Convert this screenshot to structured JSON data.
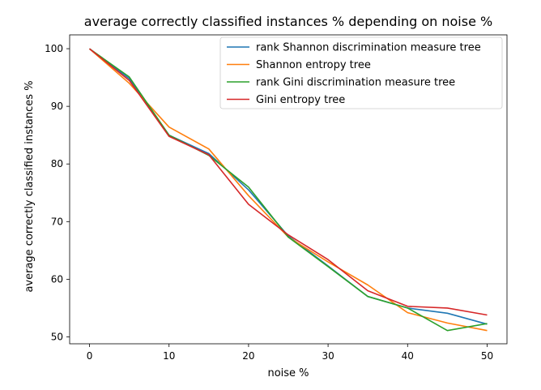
{
  "chart_data": {
    "type": "line",
    "title": "average correctly classified instances % depending on noise %",
    "xlabel": "noise %",
    "ylabel": "average correctly classified instances %",
    "xlim": [
      -2.5,
      52.5
    ],
    "ylim": [
      48.8,
      102.4
    ],
    "xticks": [
      0,
      10,
      20,
      30,
      40,
      50
    ],
    "yticks": [
      50,
      60,
      70,
      80,
      90,
      100
    ],
    "legend_position": "top-right",
    "x": [
      0,
      5,
      10,
      15,
      20,
      25,
      30,
      35,
      40,
      45,
      50
    ],
    "series": [
      {
        "name": "rank Shannon discrimination measure tree",
        "color": "#1f77b4",
        "values": [
          100,
          94.8,
          85.0,
          81.8,
          75.5,
          67.5,
          62.3,
          57.0,
          55.0,
          54.1,
          52.2
        ]
      },
      {
        "name": "Shannon entropy tree",
        "color": "#ff7f0e",
        "values": [
          100,
          94.0,
          86.4,
          82.6,
          74.5,
          67.3,
          63.0,
          59.0,
          54.2,
          52.4,
          51.1
        ]
      },
      {
        "name": "rank Gini discrimination measure tree",
        "color": "#2ca02c",
        "values": [
          100,
          95.1,
          85.0,
          81.5,
          76.0,
          67.3,
          62.2,
          57.0,
          55.0,
          51.1,
          52.3
        ]
      },
      {
        "name": "Gini entropy tree",
        "color": "#d62728",
        "values": [
          100,
          94.5,
          84.8,
          81.6,
          73.0,
          67.7,
          63.4,
          58.0,
          55.3,
          55.0,
          53.8
        ]
      }
    ]
  }
}
